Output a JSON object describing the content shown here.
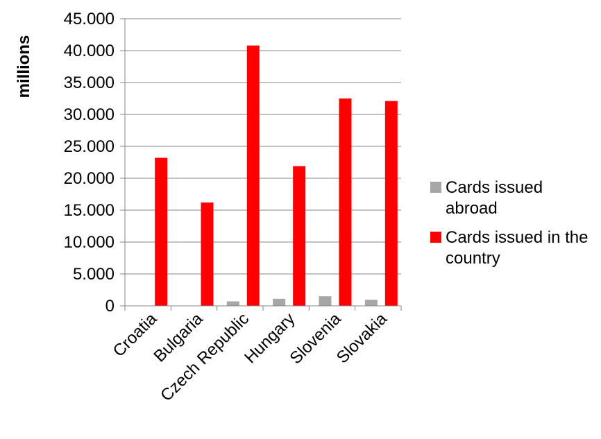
{
  "chart_data": {
    "type": "bar",
    "ylabel": "millions",
    "ylim": [
      0,
      45000
    ],
    "y_tick_values": [
      0,
      5000,
      10000,
      15000,
      20000,
      25000,
      30000,
      35000,
      40000,
      45000
    ],
    "y_tick_labels": [
      "0",
      "5.000",
      "10.000",
      "15.000",
      "20.000",
      "25.000",
      "30.000",
      "35.000",
      "40.000",
      "45.000"
    ],
    "grid": true,
    "legend_position": "right",
    "categories": [
      "Croatia",
      "Bulgaria",
      "Czech Republic",
      "Hungary",
      "Slovenia",
      "Slovakia"
    ],
    "series": [
      {
        "name": "Cards issued abroad",
        "color": "#a6a6a6",
        "values": [
          0,
          0,
          700,
          1100,
          1500,
          950
        ]
      },
      {
        "name": "Cards issued in the country",
        "color": "#ff0000",
        "values": [
          23200,
          16200,
          40800,
          21900,
          32500,
          32100
        ]
      }
    ]
  }
}
